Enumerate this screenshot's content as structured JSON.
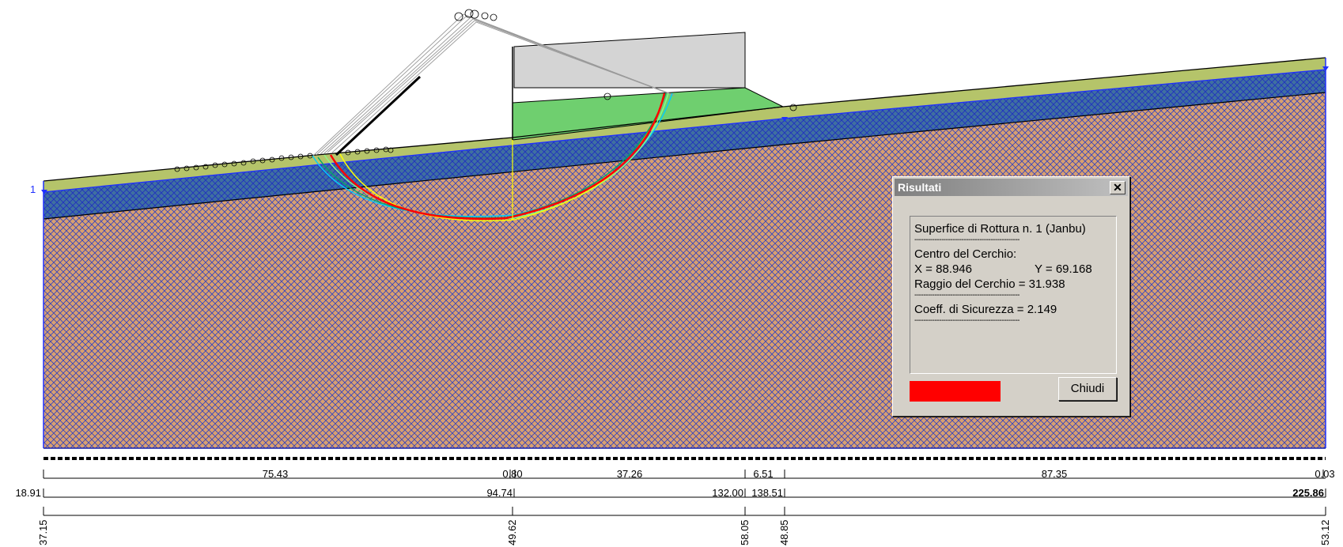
{
  "canvas": {
    "left_marker": "1"
  },
  "dimension_rows": {
    "row1": [
      "75.43",
      "0.80",
      "37.26",
      "6.51",
      "87.35",
      "0.03"
    ],
    "row2": [
      "18.91",
      "94.74",
      "132.00",
      "138.51",
      "225.86"
    ],
    "row3": [
      "37.15",
      "49.62",
      "58.05",
      "48.85",
      "53.12"
    ]
  },
  "dialog": {
    "title": "Risultati",
    "close_glyph": "✕",
    "lines": {
      "surface": "Superfice di Rottura n. 1 (Janbu)",
      "separator": "-----------------------------------------------",
      "center_label": "Centro del Cerchio:",
      "x": "X = 88.946",
      "y": "Y = 69.168",
      "radius": "Raggio del Cerchio = 31.938",
      "safety": "Coeff. di Sicurezza = 2.149"
    },
    "swatch_color": "#ff0000",
    "close_button": "Chiudi"
  },
  "colors": {
    "topsoil": "#b5c46a",
    "water_layer": "#3f5fb0",
    "deep_soil": "#d8a070",
    "hatch": "#3040c0",
    "wall_gray": "#d4d4d4",
    "fill_green": "#6fcf6f",
    "critical_surface": "#ff0000"
  }
}
